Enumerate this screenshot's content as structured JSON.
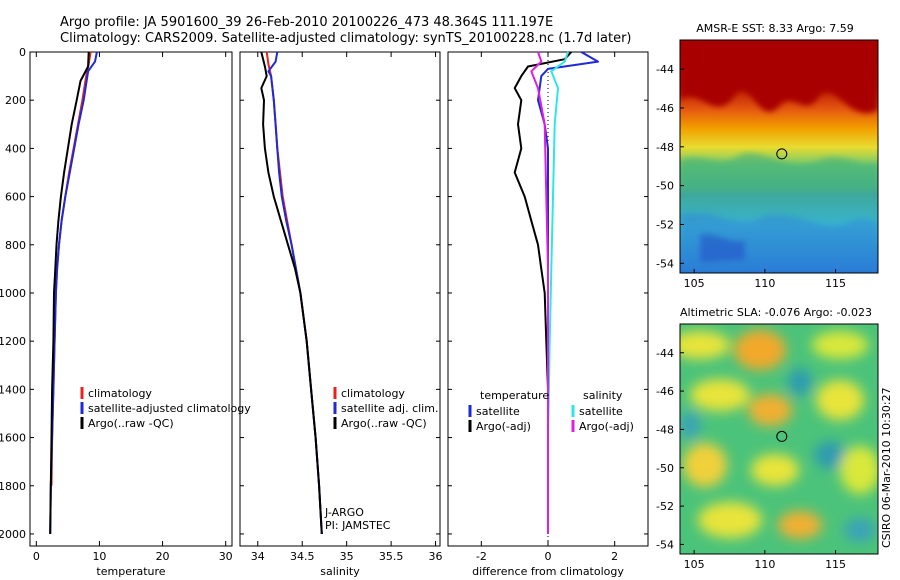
{
  "header": {
    "line1": "Argo profile: JA 5901600_39 26-Feb-2010 20100226_473 48.364S 111.197E",
    "line2": "Climatology: CARS2009. Satellite-adjusted climatology: synTS_20100228.nc (1.7d later)"
  },
  "colors": {
    "climatology": "#e8231c",
    "satellite": "#1f2ad6",
    "argo": "#000000",
    "cyan": "#2ee6e6",
    "magenta": "#e01ee0"
  },
  "chart_data": [
    {
      "type": "line",
      "name": "temperature-panel",
      "xlabel": "temperature",
      "ylabel": "",
      "xlim": [
        -1,
        31
      ],
      "ylim": [
        2050,
        0
      ],
      "xticks": [
        "0",
        "10",
        "20",
        "30"
      ],
      "xtick_values": [
        0,
        10,
        20,
        30
      ],
      "yticks": [
        "0",
        "200",
        "400",
        "600",
        "800",
        "1000",
        "1200",
        "1400",
        "1600",
        "1800",
        "2000"
      ],
      "ytick_values": [
        0,
        200,
        400,
        600,
        800,
        1000,
        1200,
        1400,
        1600,
        1800,
        2000
      ],
      "series": [
        {
          "name": "climatology",
          "color": "#e8231c",
          "points": [
            [
              8.6,
              0
            ],
            [
              8.3,
              50
            ],
            [
              7.9,
              100
            ],
            [
              7.3,
              200
            ],
            [
              6.6,
              300
            ],
            [
              5.9,
              400
            ],
            [
              5.2,
              500
            ],
            [
              4.6,
              600
            ],
            [
              4.0,
              700
            ],
            [
              3.6,
              800
            ],
            [
              3.3,
              900
            ],
            [
              3.1,
              1000
            ],
            [
              2.9,
              1200
            ],
            [
              2.7,
              1400
            ],
            [
              2.5,
              1600
            ],
            [
              2.4,
              1800
            ]
          ]
        },
        {
          "name": "satellite-adjusted climatology",
          "color": "#1f2ad6",
          "points": [
            [
              9.6,
              0
            ],
            [
              9.3,
              40
            ],
            [
              8.2,
              80
            ],
            [
              7.5,
              200
            ],
            [
              6.7,
              300
            ],
            [
              6.0,
              400
            ],
            [
              5.3,
              500
            ],
            [
              4.6,
              600
            ],
            [
              4.0,
              700
            ],
            [
              3.6,
              800
            ],
            [
              3.3,
              900
            ],
            [
              3.1,
              1000
            ],
            [
              2.9,
              1200
            ],
            [
              2.7,
              1400
            ],
            [
              2.5,
              1600
            ],
            [
              2.3,
              1800
            ],
            [
              2.2,
              2000
            ]
          ]
        },
        {
          "name": "Argo(..raw -QC)",
          "color": "#000000",
          "points": [
            [
              8.3,
              0
            ],
            [
              8.2,
              60
            ],
            [
              7.0,
              120
            ],
            [
              6.4,
              200
            ],
            [
              5.6,
              300
            ],
            [
              5.0,
              400
            ],
            [
              4.4,
              500
            ],
            [
              3.9,
              600
            ],
            [
              3.5,
              700
            ],
            [
              3.2,
              800
            ],
            [
              3.0,
              900
            ],
            [
              2.8,
              1000
            ],
            [
              2.7,
              1200
            ],
            [
              2.5,
              1400
            ],
            [
              2.4,
              1600
            ],
            [
              2.3,
              1800
            ],
            [
              2.2,
              2000
            ]
          ]
        }
      ],
      "legend": [
        "climatology",
        "satellite-adjusted climatology",
        "Argo(..raw -QC)"
      ]
    },
    {
      "type": "line",
      "name": "salinity-panel",
      "xlabel": "salinity",
      "xlim": [
        33.8,
        36.05
      ],
      "ylim": [
        2050,
        0
      ],
      "xticks": [
        "34",
        "34.5",
        "35",
        "35.5",
        "36"
      ],
      "xtick_values": [
        34,
        34.5,
        35,
        35.5,
        36
      ],
      "series": [
        {
          "name": "climatology",
          "color": "#e8231c",
          "points": [
            [
              34.1,
              0
            ],
            [
              34.12,
              50
            ],
            [
              34.15,
              100
            ],
            [
              34.18,
              200
            ],
            [
              34.2,
              300
            ],
            [
              34.22,
              400
            ],
            [
              34.25,
              500
            ],
            [
              34.28,
              600
            ],
            [
              34.33,
              700
            ],
            [
              34.38,
              800
            ],
            [
              34.43,
              900
            ],
            [
              34.48,
              1000
            ],
            [
              34.55,
              1200
            ],
            [
              34.6,
              1400
            ],
            [
              34.65,
              1600
            ],
            [
              34.69,
              1800
            ],
            [
              34.72,
              2000
            ]
          ]
        },
        {
          "name": "satellite adj. clim.",
          "color": "#1f2ad6",
          "points": [
            [
              34.22,
              0
            ],
            [
              34.2,
              40
            ],
            [
              34.12,
              80
            ],
            [
              34.15,
              100
            ],
            [
              34.18,
              200
            ],
            [
              34.2,
              300
            ],
            [
              34.22,
              400
            ],
            [
              34.24,
              500
            ],
            [
              34.27,
              600
            ],
            [
              34.32,
              700
            ],
            [
              34.38,
              800
            ],
            [
              34.43,
              900
            ],
            [
              34.48,
              1000
            ],
            [
              34.55,
              1200
            ],
            [
              34.6,
              1400
            ],
            [
              34.65,
              1600
            ],
            [
              34.69,
              1800
            ],
            [
              34.72,
              2000
            ]
          ]
        },
        {
          "name": "Argo(..raw -QC)",
          "color": "#000000",
          "points": [
            [
              34.04,
              0
            ],
            [
              34.08,
              60
            ],
            [
              34.1,
              100
            ],
            [
              34.04,
              150
            ],
            [
              34.07,
              200
            ],
            [
              34.06,
              300
            ],
            [
              34.08,
              400
            ],
            [
              34.12,
              500
            ],
            [
              34.18,
              600
            ],
            [
              34.26,
              700
            ],
            [
              34.34,
              800
            ],
            [
              34.42,
              900
            ],
            [
              34.48,
              1000
            ],
            [
              34.55,
              1200
            ],
            [
              34.6,
              1400
            ],
            [
              34.65,
              1600
            ],
            [
              34.69,
              1800
            ],
            [
              34.72,
              2000
            ]
          ]
        }
      ],
      "legend": [
        "climatology",
        "satellite adj. clim.",
        "Argo(..raw -QC)"
      ],
      "annotations": [
        "J-ARGO",
        "PI: JAMSTEC"
      ]
    },
    {
      "type": "line",
      "name": "difference-panel",
      "xlabel": "difference from climatology",
      "xlim": [
        -3,
        3
      ],
      "ylim": [
        2050,
        0
      ],
      "xticks": [
        "-2",
        "0",
        "2"
      ],
      "xtick_values": [
        -2,
        0,
        2
      ],
      "series": [
        {
          "name": "temperature satellite",
          "color": "#1f2ad6",
          "points": [
            [
              1.0,
              0
            ],
            [
              1.5,
              40
            ],
            [
              0.0,
              70
            ],
            [
              -0.2,
              100
            ],
            [
              -0.3,
              200
            ],
            [
              -0.1,
              300
            ],
            [
              0.0,
              400
            ],
            [
              0.0,
              600
            ],
            [
              0.0,
              1000
            ],
            [
              0.0,
              1400
            ]
          ]
        },
        {
          "name": "temperature Argo(-adj)",
          "color": "#000000",
          "points": [
            [
              0.7,
              0
            ],
            [
              0.5,
              30
            ],
            [
              -0.6,
              60
            ],
            [
              -0.8,
              100
            ],
            [
              -1.0,
              150
            ],
            [
              -0.8,
              200
            ],
            [
              -0.9,
              300
            ],
            [
              -0.8,
              400
            ],
            [
              -1.0,
              500
            ],
            [
              -0.7,
              600
            ],
            [
              -0.5,
              700
            ],
            [
              -0.3,
              800
            ],
            [
              -0.2,
              900
            ],
            [
              -0.1,
              1000
            ],
            [
              -0.05,
              1200
            ],
            [
              0.0,
              1400
            ]
          ]
        },
        {
          "name": "salinity satellite",
          "color": "#2ee6e6",
          "points": [
            [
              0.6,
              0
            ],
            [
              0.5,
              40
            ],
            [
              0.1,
              80
            ],
            [
              0.3,
              150
            ],
            [
              0.2,
              300
            ],
            [
              0.15,
              600
            ],
            [
              0.1,
              900
            ],
            [
              0.05,
              1200
            ],
            [
              0.0,
              1600
            ],
            [
              0.0,
              2000
            ]
          ]
        },
        {
          "name": "salinity Argo(-adj)",
          "color": "#e01ee0",
          "points": [
            [
              -0.3,
              0
            ],
            [
              -0.2,
              40
            ],
            [
              -0.5,
              80
            ],
            [
              -0.3,
              150
            ],
            [
              -0.1,
              300
            ],
            [
              -0.05,
              600
            ],
            [
              0.0,
              900
            ],
            [
              0.0,
              1200
            ],
            [
              0.0,
              1600
            ],
            [
              0.0,
              2000
            ]
          ]
        }
      ],
      "legend_titles": [
        "temperature",
        "salinity"
      ],
      "legend_left": [
        "satellite",
        "Argo(-adj)"
      ],
      "legend_right": [
        "satellite",
        "Argo(-adj)"
      ]
    },
    {
      "type": "heatmap",
      "name": "sst-map",
      "title": "AMSR-E SST: 8.33 Argo: 7.59",
      "xlim": [
        104,
        118
      ],
      "ylim": [
        -54.5,
        -42.5
      ],
      "xticks": [
        "105",
        "110",
        "115"
      ],
      "xtick_values": [
        105,
        110,
        115
      ],
      "yticks": [
        "-44",
        "-46",
        "-48",
        "-50",
        "-52",
        "-54"
      ],
      "ytick_values": [
        -44,
        -46,
        -48,
        -50,
        -52,
        -54
      ],
      "marker": {
        "lon": 111.197,
        "lat": -48.364
      }
    },
    {
      "type": "heatmap",
      "name": "sla-map",
      "title": "Altimetric SLA: -0.076 Argo: -0.023",
      "xlim": [
        104,
        118
      ],
      "ylim": [
        -54.5,
        -42.5
      ],
      "xticks": [
        "105",
        "110",
        "115"
      ],
      "xtick_values": [
        105,
        110,
        115
      ],
      "yticks": [
        "-44",
        "-46",
        "-48",
        "-50",
        "-52",
        "-54"
      ],
      "ytick_values": [
        -44,
        -46,
        -48,
        -50,
        -52,
        -54
      ],
      "marker": {
        "lon": 111.197,
        "lat": -48.364
      }
    }
  ],
  "footer": {
    "credit": "CSIRO 06-Mar-2010 10:30:27"
  }
}
